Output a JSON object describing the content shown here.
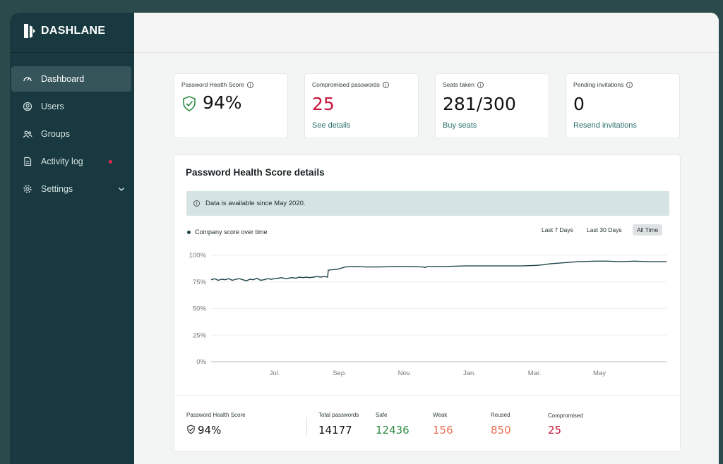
{
  "brand": {
    "name": "DASHLANE"
  },
  "sidebar": {
    "items": [
      {
        "label": "Dashboard",
        "icon": "gauge-icon",
        "active": true
      },
      {
        "label": "Users",
        "icon": "user-icon"
      },
      {
        "label": "Groups",
        "icon": "group-icon"
      },
      {
        "label": "Activity log",
        "icon": "document-icon",
        "badge_color": "#e5294f"
      },
      {
        "label": "Settings",
        "icon": "gear-icon",
        "has_chevron": true
      }
    ]
  },
  "stats": [
    {
      "label": "Password Health Score",
      "value": "94%",
      "icon": "shield-check-icon"
    },
    {
      "label": "Compromised passwords",
      "value": "25",
      "link": "See details",
      "value_color": "#c8163e"
    },
    {
      "label": "Seats taken",
      "value": "281/300",
      "link": "Buy seats"
    },
    {
      "label": "Pending invitations",
      "value": "0",
      "link": "Resend invitations"
    }
  ],
  "details": {
    "title": "Password Health Score details",
    "notice": "Data is available since May 2020.",
    "legend": "Company score over time",
    "ranges": [
      "Last 7 Days",
      "Last 30 Days",
      "All Time"
    ],
    "active_range": "All Time"
  },
  "chart_data": {
    "type": "line",
    "y_ticks": [
      "100%",
      "75%",
      "50%",
      "25%",
      "0%"
    ],
    "x_ticks": [
      "Jul.",
      "Sep.",
      "Nov.",
      "Jan.",
      "Mar.",
      "May"
    ],
    "ylim": [
      0,
      100
    ],
    "series": [
      {
        "color": "#1e4448",
        "points": [
          [
            0,
            77
          ],
          [
            5,
            78
          ],
          [
            10,
            76.5
          ],
          [
            15,
            77.5
          ],
          [
            20,
            77
          ],
          [
            25,
            78
          ],
          [
            30,
            76.5
          ],
          [
            35,
            77.5
          ],
          [
            40,
            78
          ],
          [
            45,
            77
          ],
          [
            50,
            76
          ],
          [
            55,
            77.5
          ],
          [
            60,
            77
          ],
          [
            65,
            78.5
          ],
          [
            70,
            76.5
          ],
          [
            75,
            77
          ],
          [
            80,
            78
          ],
          [
            85,
            77.5
          ],
          [
            90,
            78
          ],
          [
            95,
            78.5
          ],
          [
            100,
            79
          ],
          [
            105,
            78
          ],
          [
            110,
            78.5
          ],
          [
            115,
            79
          ],
          [
            120,
            78.5
          ],
          [
            125,
            79.5
          ],
          [
            130,
            79
          ],
          [
            135,
            79.5
          ],
          [
            140,
            79
          ],
          [
            145,
            79.5
          ],
          [
            150,
            80
          ],
          [
            155,
            79.5
          ],
          [
            160,
            80
          ],
          [
            165,
            79.5
          ],
          [
            166,
            86
          ],
          [
            180,
            87
          ],
          [
            190,
            89
          ],
          [
            200,
            89.5
          ],
          [
            220,
            89
          ],
          [
            240,
            89
          ],
          [
            260,
            89.5
          ],
          [
            280,
            89.5
          ],
          [
            300,
            89
          ],
          [
            303,
            88.5
          ],
          [
            306,
            89.5
          ],
          [
            330,
            89.5
          ],
          [
            360,
            90
          ],
          [
            400,
            90
          ],
          [
            440,
            90
          ],
          [
            460,
            90.5
          ],
          [
            470,
            91
          ],
          [
            480,
            92
          ],
          [
            500,
            93
          ],
          [
            520,
            94
          ],
          [
            545,
            94.5
          ],
          [
            560,
            94.5
          ],
          [
            580,
            94
          ],
          [
            600,
            94.5
          ],
          [
            620,
            94
          ],
          [
            645,
            94
          ]
        ]
      }
    ]
  },
  "summary": {
    "health_label": "Password Health Score",
    "health_value": "94%",
    "items": [
      {
        "label": "Total passwords",
        "value": "14177",
        "color": "#111111"
      },
      {
        "label": "Safe",
        "value": "12436",
        "color": "#2e8b45"
      },
      {
        "label": "Weak",
        "value": "156",
        "color": "#e8704f"
      },
      {
        "label": "Reused",
        "value": "850",
        "color": "#e8704f"
      },
      {
        "label": "Compromised",
        "value": "25",
        "color": "#c8163e"
      }
    ]
  }
}
